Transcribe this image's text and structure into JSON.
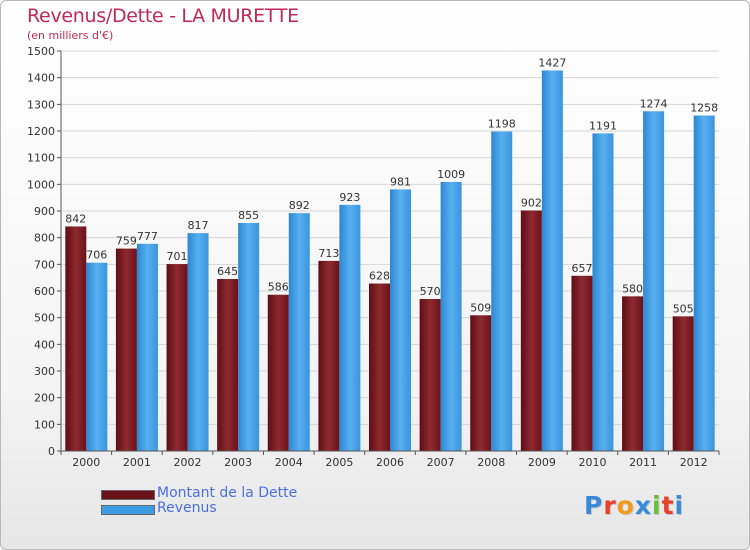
{
  "title": "Revenus/Dette - LA MURETTE",
  "subtitle": "(en milliers d'€)",
  "logo": {
    "text": "Proxiti",
    "colors": [
      "#3a8ad8",
      "#e8402a",
      "#f39a1e",
      "#3a8ad8",
      "#6cbf3a",
      "#e8402a",
      "#3a8ad8"
    ]
  },
  "colors": {
    "dette": "#7a1a20",
    "revenus": "#3d9be4",
    "title": "#c02857",
    "legend_text": "#4a6fe0"
  },
  "chart_data": {
    "type": "bar",
    "title": "Revenus/Dette - LA MURETTE",
    "subtitle": "(en milliers d'€)",
    "categories": [
      "2000",
      "2001",
      "2002",
      "2003",
      "2004",
      "2005",
      "2006",
      "2007",
      "2008",
      "2009",
      "2010",
      "2011",
      "2012"
    ],
    "series": [
      {
        "name": "Montant de la Dette",
        "values": [
          842,
          759,
          701,
          645,
          586,
          713,
          628,
          570,
          509,
          902,
          657,
          580,
          505
        ]
      },
      {
        "name": "Revenus",
        "values": [
          706,
          777,
          817,
          855,
          892,
          923,
          981,
          1009,
          1198,
          1427,
          1191,
          1274,
          1258
        ]
      }
    ],
    "ylim": [
      0,
      1500
    ],
    "yticks": [
      0,
      100,
      200,
      300,
      400,
      500,
      600,
      700,
      800,
      900,
      1000,
      1100,
      1200,
      1300,
      1400,
      1500
    ],
    "grid": true,
    "legend_position": "bottom-left"
  }
}
